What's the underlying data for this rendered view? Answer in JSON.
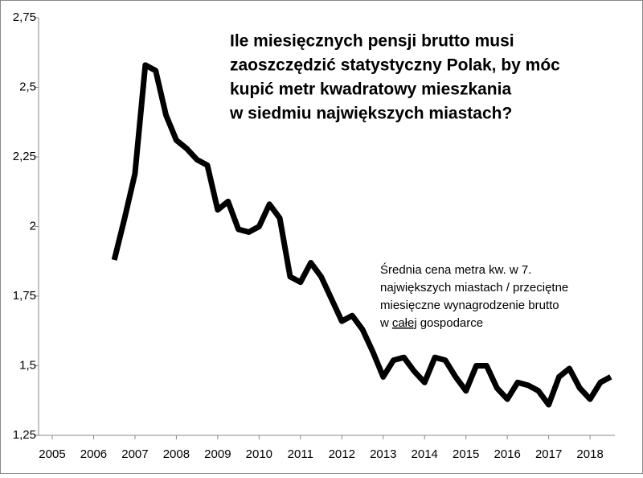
{
  "chart_data": {
    "type": "line",
    "title": [
      "Ile miesięcznych pensji brutto musi",
      "zaoszczędzić statystyczny Polak, by móc",
      "kupić metr kwadratowy mieszkania",
      "w siedmiu największych miastach?"
    ],
    "annotation": [
      "Średnia cena metra kw. w 7.",
      "największych miastach / przeciętne",
      "miesięczne wynagrodzenie brutto"
    ],
    "annotation_last_line": [
      "w",
      "całej",
      "gospodarce"
    ],
    "x": [
      2006.5,
      2006.75,
      2007.0,
      2007.25,
      2007.5,
      2007.75,
      2008.0,
      2008.25,
      2008.5,
      2008.75,
      2009.0,
      2009.25,
      2009.5,
      2009.75,
      2010.0,
      2010.25,
      2010.5,
      2010.75,
      2011.0,
      2011.25,
      2011.5,
      2011.75,
      2012.0,
      2012.25,
      2012.5,
      2012.75,
      2013.0,
      2013.25,
      2013.5,
      2013.75,
      2014.0,
      2014.25,
      2014.5,
      2014.75,
      2015.0,
      2015.25,
      2015.5,
      2015.75,
      2016.0,
      2016.25,
      2016.5,
      2016.75,
      2017.0,
      2017.25,
      2017.5,
      2017.75,
      2018.0,
      2018.25,
      2018.5
    ],
    "series": [
      {
        "color": "#000000",
        "values": [
          1.88,
          2.03,
          2.19,
          2.58,
          2.56,
          2.4,
          2.31,
          2.28,
          2.24,
          2.22,
          2.06,
          2.09,
          1.99,
          1.98,
          2.0,
          2.08,
          2.03,
          1.82,
          1.8,
          1.87,
          1.82,
          1.74,
          1.66,
          1.68,
          1.63,
          1.55,
          1.46,
          1.52,
          1.53,
          1.48,
          1.44,
          1.53,
          1.52,
          1.46,
          1.41,
          1.5,
          1.5,
          1.42,
          1.38,
          1.44,
          1.43,
          1.41,
          1.36,
          1.46,
          1.49,
          1.42,
          1.38,
          1.44,
          1.46
        ]
      }
    ],
    "xlim": [
      2004.67,
      2018.6
    ],
    "xticks": [
      2005,
      2006,
      2007,
      2008,
      2009,
      2010,
      2011,
      2012,
      2013,
      2014,
      2015,
      2016,
      2017,
      2018
    ],
    "ylim": [
      1.25,
      2.75
    ],
    "yticks": [
      {
        "value": 1.25,
        "label": "1,25"
      },
      {
        "value": 1.5,
        "label": "1,5"
      },
      {
        "value": 1.75,
        "label": "1,75"
      },
      {
        "value": 2,
        "label": "2"
      },
      {
        "value": 2.25,
        "label": "2,25"
      },
      {
        "value": 2.5,
        "label": "2,5"
      },
      {
        "value": 2.75,
        "label": "2,75"
      }
    ],
    "grid": false
  }
}
